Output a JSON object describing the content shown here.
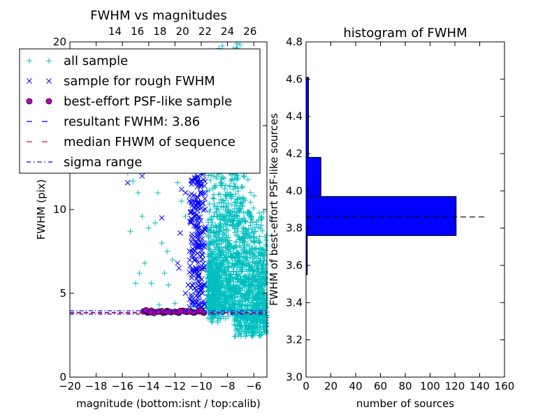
{
  "chart_data": [
    {
      "type": "scatter",
      "title": "FWHM vs magnitudes",
      "xlabel": "magnitude (bottom:isnt / top:calib)",
      "ylabel": "FWHM (pix)",
      "xlim": [
        -20,
        -5
      ],
      "ylim": [
        0,
        20
      ],
      "top_xlim": [
        10,
        27.5
      ],
      "x_ticks": [
        -20,
        -18,
        -16,
        -14,
        -12,
        -10,
        -8,
        -6
      ],
      "x_tick_labels": [
        "−20",
        "−18",
        "−16",
        "−14",
        "−12",
        "−10",
        "−8",
        "−6"
      ],
      "y_ticks": [
        0,
        5,
        10,
        15,
        20
      ],
      "y_tick_labels": [
        "0",
        "5",
        "10",
        "15",
        "20"
      ],
      "top_ticks": [
        14,
        16,
        18,
        20,
        22,
        24,
        26
      ],
      "top_tick_labels": [
        "14",
        "16",
        "18",
        "20",
        "22",
        "24",
        "26"
      ],
      "grid": false,
      "legend_position": "upper-left",
      "series": [
        {
          "name": "all sample",
          "marker": "+",
          "color": "#00bfbf",
          "points": [
            [
              -15.4,
              8.7
            ],
            [
              -15.6,
              12.2
            ],
            [
              -15.2,
              11.7
            ],
            [
              -14.8,
              11.0
            ],
            [
              -14.5,
              9.6
            ],
            [
              -14.0,
              8.9
            ],
            [
              -13.5,
              9.2
            ],
            [
              -13.0,
              8.0
            ],
            [
              -12.6,
              7.5
            ],
            [
              -12.2,
              7.0
            ],
            [
              -11.5,
              10.5
            ],
            [
              -11.2,
              9.6
            ],
            [
              -14.3,
              6.8
            ],
            [
              -13.8,
              5.6
            ],
            [
              -12.8,
              6.2
            ],
            [
              -15.0,
              5.6
            ],
            [
              -14.7,
              6.2
            ],
            [
              -12.5,
              5.5
            ],
            [
              -13.2,
              4.3
            ],
            [
              -12.0,
              4.4
            ],
            [
              -11.0,
              4.0
            ],
            [
              -10.6,
              4.2
            ],
            [
              -11.8,
              11.6
            ],
            [
              -13.3,
              11.0
            ]
          ],
          "dense_region": {
            "x_range": [
              -9.5,
              -5.0
            ],
            "y_core": [
              3.0,
              9.0
            ],
            "y_tail": [
              9.0,
              20.0
            ],
            "peak_x": -7.5
          }
        },
        {
          "name": "sample for rough FWHM",
          "marker": "x",
          "color": "#0000ff",
          "points": [
            [
              -15.6,
              11.6
            ],
            [
              -14.5,
              12.0
            ],
            [
              -13.0,
              9.5
            ],
            [
              -11.6,
              8.6
            ],
            [
              -11.2,
              11.0
            ],
            [
              -11.5,
              11.2
            ],
            [
              -10.8,
              9.2
            ],
            [
              -10.5,
              7.0
            ],
            [
              -10.7,
              6.1
            ],
            [
              -11.0,
              5.5
            ],
            [
              -11.2,
              5.0
            ],
            [
              -10.4,
              4.5
            ],
            [
              -10.9,
              4.2
            ],
            [
              -10.0,
              11.5
            ],
            [
              -10.1,
              12.8
            ],
            [
              -9.8,
              8.0
            ],
            [
              -9.9,
              7.0
            ],
            [
              -10.2,
              10.3
            ],
            [
              -10.3,
              9.0
            ],
            [
              -11.7,
              6.5
            ],
            [
              -11.8,
              6.8
            ],
            [
              -10.2,
              6.0
            ],
            [
              -9.9,
              5.0
            ],
            [
              -10.0,
              4.1
            ]
          ],
          "dense_columns": [
            {
              "x_range": [
                -10.9,
                -10.2
              ],
              "y_range": [
                4.2,
                12.0
              ]
            },
            {
              "x_range": [
                -10.3,
                -9.7
              ],
              "y_range": [
                4.0,
                12.7
              ]
            }
          ]
        },
        {
          "name": "best-effort PSF-like sample",
          "marker": "o",
          "color": "#bf00bf",
          "x": [
            -14.4,
            -14.1,
            -13.8,
            -13.5,
            -13.2,
            -12.9,
            -12.6,
            -12.3,
            -12.0,
            -11.7,
            -11.4,
            -11.1,
            -10.8,
            -10.5,
            -10.2,
            -9.9,
            -14.2,
            -13.6,
            -13.0,
            -12.4,
            -11.8,
            -11.2,
            -10.6,
            -10.0,
            -9.8,
            -10.9,
            -11.6,
            -12.7,
            -13.3,
            -13.9
          ],
          "y": [
            3.92,
            3.85,
            3.97,
            3.88,
            3.91,
            3.83,
            3.95,
            3.87,
            3.9,
            3.84,
            3.96,
            3.89,
            3.92,
            3.86,
            3.93,
            3.88,
            3.99,
            3.82,
            3.94,
            3.9,
            3.86,
            3.93,
            3.85,
            3.97,
            3.84,
            3.91,
            3.95,
            3.87,
            3.9,
            3.86
          ]
        }
      ],
      "lines": [
        {
          "name": "resultant FWHM: 3.86",
          "y": 3.86,
          "color": "#0000ff",
          "style": "dashed"
        },
        {
          "name": "median FHWM of sequence",
          "y": 3.83,
          "color": "#ff0000",
          "style": "dashed"
        },
        {
          "name": "sigma range",
          "y": [
            3.76,
            3.96
          ],
          "color": "#0000ff",
          "style": "dashdot"
        }
      ]
    },
    {
      "type": "bar",
      "orientation": "horizontal",
      "title": "histogram of FWHM",
      "xlabel": "number of sources",
      "ylabel": "FWHM of best-effort PSF-like sources",
      "xlim": [
        0,
        160
      ],
      "ylim": [
        3.0,
        4.8
      ],
      "x_ticks": [
        0,
        20,
        40,
        60,
        80,
        100,
        120,
        140,
        160
      ],
      "x_tick_labels": [
        "0",
        "20",
        "40",
        "60",
        "80",
        "100",
        "120",
        "140",
        "160"
      ],
      "y_ticks": [
        3.0,
        3.2,
        3.4,
        3.6,
        3.8,
        4.0,
        4.2,
        4.4,
        4.6,
        4.8
      ],
      "y_tick_labels": [
        "3.0",
        "3.2",
        "3.4",
        "3.6",
        "3.8",
        "4.0",
        "4.2",
        "4.4",
        "4.6",
        "4.8"
      ],
      "bins": [
        {
          "low": 3.55,
          "high": 3.76,
          "count": 1
        },
        {
          "low": 3.76,
          "high": 3.97,
          "count": 121
        },
        {
          "low": 3.97,
          "high": 4.18,
          "count": 12
        },
        {
          "low": 4.18,
          "high": 4.39,
          "count": 2
        },
        {
          "low": 4.39,
          "high": 4.61,
          "count": 2
        }
      ],
      "bar_color": "#0000ff",
      "reference_line": {
        "y": 3.86,
        "x_range": [
          0,
          145
        ],
        "color": "#000000",
        "style": "dashed"
      }
    }
  ]
}
